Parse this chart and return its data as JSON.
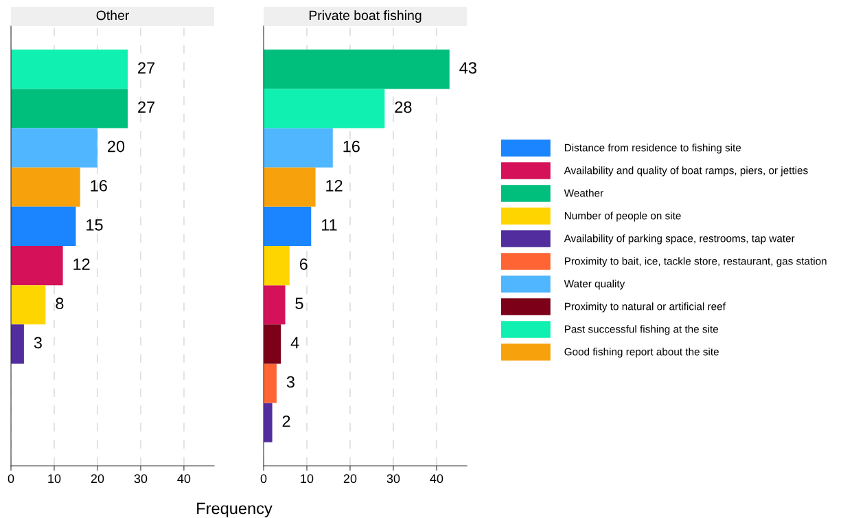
{
  "chart_data": [
    {
      "type": "bar",
      "orientation": "horizontal",
      "title": "Other",
      "xlabel": "Frequency",
      "categories": [
        null,
        null,
        null,
        null,
        null,
        null,
        null,
        null,
        null,
        null
      ],
      "xlim": [
        0,
        47
      ],
      "xticks": [
        0,
        10,
        20,
        30,
        40
      ],
      "grid": "x",
      "tick_labels": "x",
      "data_labels": true,
      "legend": "right",
      "series": [
        {
          "name": "Past successful fishing at the site",
          "color": "#10f0b0",
          "values": [
            27,
            null,
            null,
            null,
            null,
            null,
            null,
            null,
            null,
            null
          ]
        },
        {
          "name": "Weather",
          "color": "#00bf7d",
          "values": [
            null,
            27,
            null,
            null,
            null,
            null,
            null,
            null,
            null,
            null
          ]
        },
        {
          "name": "Water quality",
          "color": "#4fb6ff",
          "values": [
            null,
            null,
            20,
            null,
            null,
            null,
            null,
            null,
            null,
            null
          ]
        },
        {
          "name": "Good fishing report about the site",
          "color": "#f7a20c",
          "values": [
            null,
            null,
            null,
            16,
            null,
            null,
            null,
            null,
            null,
            null
          ]
        },
        {
          "name": "Distance from residence to fishing site",
          "color": "#1a85ff",
          "values": [
            null,
            null,
            null,
            null,
            15,
            null,
            null,
            null,
            null,
            null
          ]
        },
        {
          "name": "Availability and quality of boat ramps, piers, or jetties",
          "color": "#d41159",
          "values": [
            null,
            null,
            null,
            null,
            null,
            12,
            null,
            null,
            null,
            null
          ]
        },
        {
          "name": "Number of people on site",
          "color": "#ffd500",
          "values": [
            null,
            null,
            null,
            null,
            null,
            null,
            8,
            null,
            null,
            null
          ]
        },
        {
          "name": "Availability of parking space, restrooms, tap water",
          "color": "#512d9e",
          "values": [
            null,
            null,
            null,
            null,
            null,
            null,
            null,
            3,
            null,
            null
          ]
        }
      ]
    },
    {
      "type": "bar",
      "orientation": "horizontal",
      "title": "Private boat fishing",
      "categories": [
        null,
        null,
        null,
        null,
        null,
        null,
        null,
        null,
        null,
        null
      ],
      "xlim": [
        0,
        47
      ],
      "xticks": [
        0,
        10,
        20,
        30,
        40
      ],
      "grid": "x",
      "tick_labels": "x",
      "data_labels": true,
      "legend": "right",
      "series": [
        {
          "name": "Distance from residence to fishing site",
          "color": "#1a85ff",
          "values": [
            null,
            null,
            null,
            null,
            11,
            null,
            null,
            null,
            null,
            null
          ]
        },
        {
          "name": "Availability and quality of boat ramps, piers, or jetties",
          "color": "#d41159",
          "values": [
            null,
            null,
            null,
            null,
            null,
            null,
            5,
            null,
            null,
            null
          ]
        },
        {
          "name": "Weather",
          "color": "#00bf7d",
          "values": [
            43,
            null,
            null,
            null,
            null,
            null,
            null,
            null,
            null,
            null
          ]
        },
        {
          "name": "Number of people on site",
          "color": "#ffd500",
          "values": [
            null,
            null,
            null,
            null,
            null,
            6,
            null,
            null,
            null,
            null
          ]
        },
        {
          "name": "Availability of parking space, restrooms, tap water",
          "color": "#512d9e",
          "values": [
            null,
            null,
            null,
            null,
            null,
            null,
            null,
            null,
            null,
            2
          ]
        },
        {
          "name": "Proximity to bait, ice, tackle store, restaurant, gas station",
          "color": "#ff6434",
          "values": [
            null,
            null,
            null,
            null,
            null,
            null,
            null,
            null,
            3,
            null
          ]
        },
        {
          "name": "Water quality",
          "color": "#4fb6ff",
          "values": [
            null,
            null,
            16,
            null,
            null,
            null,
            null,
            null,
            null,
            null
          ]
        },
        {
          "name": "Proximity to natural or artificial reef",
          "color": "#7b0018",
          "values": [
            null,
            null,
            null,
            null,
            null,
            null,
            null,
            4,
            null,
            null
          ]
        },
        {
          "name": "Past successful fishing at the site",
          "color": "#10f0b0",
          "values": [
            null,
            28,
            null,
            null,
            null,
            null,
            null,
            null,
            null,
            null
          ]
        },
        {
          "name": "Good fishing report about the site",
          "color": "#f7a20c",
          "values": [
            null,
            null,
            null,
            12,
            null,
            null,
            null,
            null,
            null,
            null
          ]
        }
      ]
    }
  ]
}
